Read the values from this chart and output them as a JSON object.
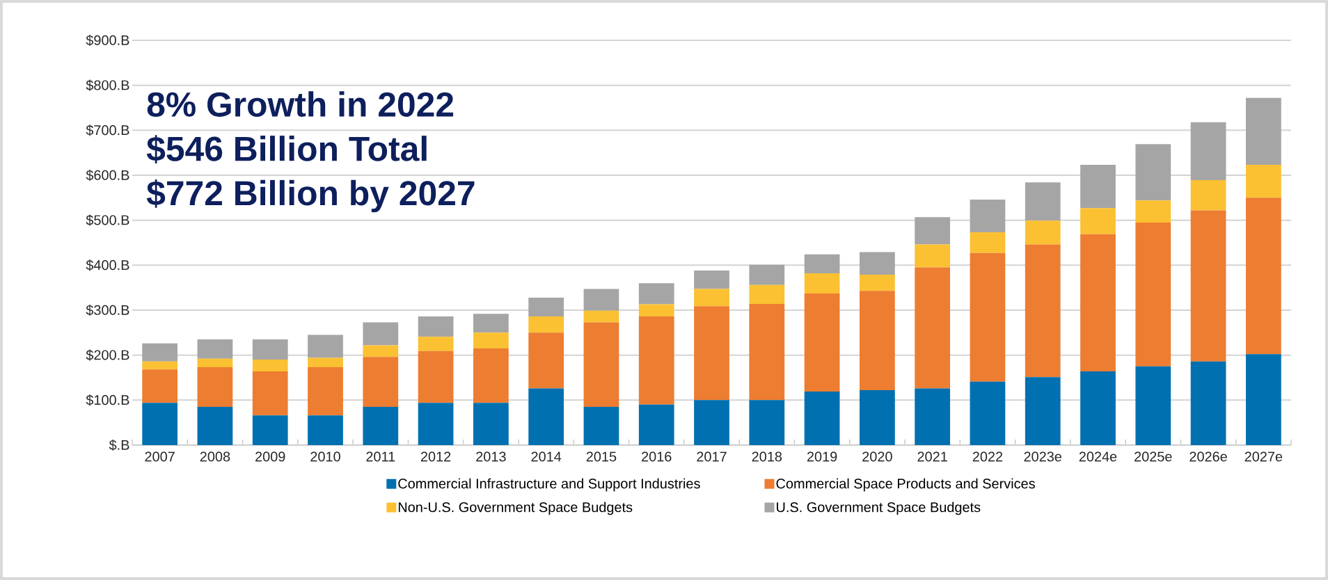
{
  "chart_data": {
    "type": "bar",
    "stacked": true,
    "categories": [
      "2007",
      "2008",
      "2009",
      "2010",
      "2011",
      "2012",
      "2013",
      "2014",
      "2015",
      "2016",
      "2017",
      "2018",
      "2019",
      "2020",
      "2021",
      "2022",
      "2023e",
      "2024e",
      "2025e",
      "2026e",
      "2027e"
    ],
    "series": [
      {
        "name": "Commercial Infrastructure and Support Industries",
        "color": "#0070b0",
        "values": [
          94,
          85,
          66,
          66,
          85,
          94,
          94,
          126,
          85,
          90,
          100,
          100,
          119,
          122,
          126,
          141,
          151,
          164,
          175,
          186,
          202
        ]
      },
      {
        "name": "Commercial Space Products and Services",
        "color": "#ed7d31",
        "values": [
          74,
          88,
          98,
          107,
          111,
          115,
          121,
          124,
          188,
          196,
          209,
          214,
          218,
          221,
          269,
          286,
          295,
          305,
          320,
          336,
          348
        ]
      },
      {
        "name": "Non-U.S. Government Space Budgets",
        "color": "#fbc132",
        "values": [
          18,
          19,
          26,
          21,
          26,
          32,
          35,
          36,
          26,
          27,
          38,
          42,
          45,
          36,
          51,
          46,
          53,
          58,
          49,
          67,
          73
        ]
      },
      {
        "name": "U.S. Government Space Budgets",
        "color": "#a5a5a5",
        "values": [
          40,
          43,
          45,
          51,
          51,
          45,
          42,
          42,
          48,
          47,
          41,
          45,
          42,
          50,
          61,
          73,
          85,
          96,
          125,
          129,
          149
        ]
      }
    ],
    "ylim": [
      0,
      900
    ],
    "yticks": [
      {
        "value": 0,
        "label": "$.B"
      },
      {
        "value": 100,
        "label": "$100.B"
      },
      {
        "value": 200,
        "label": "$200.B"
      },
      {
        "value": 300,
        "label": "$300.B"
      },
      {
        "value": 400,
        "label": "$400.B"
      },
      {
        "value": 500,
        "label": "$500.B"
      },
      {
        "value": 600,
        "label": "$600.B"
      },
      {
        "value": 700,
        "label": "$700.B"
      },
      {
        "value": 800,
        "label": "$800.B"
      },
      {
        "value": 900,
        "label": "$900.B"
      }
    ],
    "grid": "y",
    "legend": "bottom",
    "annotations": [
      "8% Growth in 2022",
      "$546 Billion Total",
      "$772 Billion by 2027"
    ]
  }
}
